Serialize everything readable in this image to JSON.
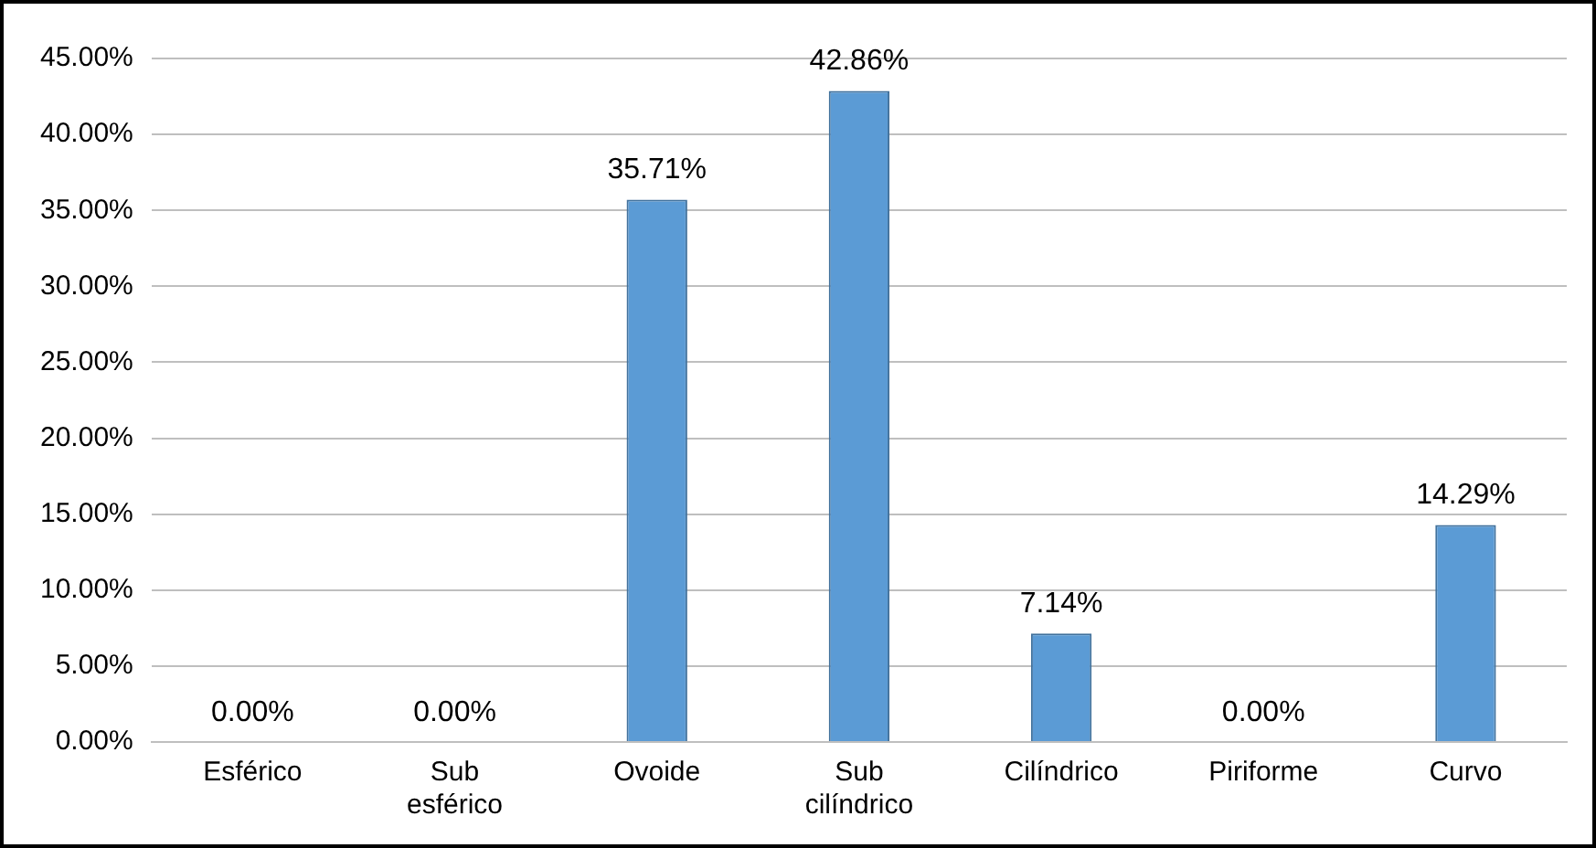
{
  "chart_data": {
    "type": "bar",
    "categories": [
      "Esférico",
      "Sub esférico",
      "Ovoide",
      "Sub cilíndrico",
      "Cilíndrico",
      "Piriforme",
      "Curvo"
    ],
    "values": [
      0,
      0,
      35.71,
      42.86,
      7.14,
      0,
      14.29
    ],
    "value_labels": [
      "0.00%",
      "0.00%",
      "35.71%",
      "42.86%",
      "7.14%",
      "0.00%",
      "14.29%"
    ],
    "color": "#5b9bd5",
    "ylim": [
      0,
      45
    ],
    "yticks": [
      {
        "value": 0,
        "label": "0.00%"
      },
      {
        "value": 5,
        "label": "5.00%"
      },
      {
        "value": 10,
        "label": "10.00%"
      },
      {
        "value": 15,
        "label": "15.00%"
      },
      {
        "value": 20,
        "label": "20.00%"
      },
      {
        "value": 25,
        "label": "25.00%"
      },
      {
        "value": 30,
        "label": "30.00%"
      },
      {
        "value": 35,
        "label": "35.00%"
      },
      {
        "value": 40,
        "label": "40.00%"
      },
      {
        "value": 45,
        "label": "45.00%"
      }
    ],
    "grid": "y",
    "legend": false
  }
}
